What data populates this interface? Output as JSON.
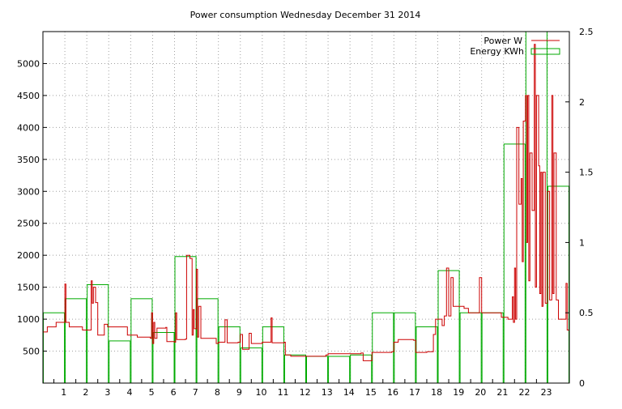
{
  "chart_data": {
    "type": "line",
    "title": "Power consumption Wednesday December 31 2014",
    "x_ticks": [
      "1",
      "2",
      "3",
      "4",
      "5",
      "6",
      "7",
      "8",
      "9",
      "10",
      "11",
      "12",
      "13",
      "14",
      "15",
      "16",
      "17",
      "18",
      "19",
      "20",
      "21",
      "22",
      "23"
    ],
    "xlim": [
      0,
      24
    ],
    "y_left": {
      "ticks": [
        "500",
        "1000",
        "1500",
        "2000",
        "2500",
        "3000",
        "3500",
        "4000",
        "4500",
        "5000"
      ],
      "ylim": [
        0,
        5500
      ]
    },
    "y_right": {
      "ticks": [
        "0",
        "0.5",
        "1",
        "1.5",
        "2",
        "2.5"
      ],
      "ylim": [
        0,
        2.5
      ]
    },
    "grid": true,
    "legend_position": "top-right",
    "series": [
      {
        "name": "Power W",
        "axis": "left",
        "color": "#cc0000",
        "style": "step-line",
        "points": [
          [
            0.0,
            800
          ],
          [
            0.2,
            880
          ],
          [
            0.6,
            950
          ],
          [
            1.0,
            1550
          ],
          [
            1.05,
            950
          ],
          [
            1.2,
            880
          ],
          [
            1.8,
            830
          ],
          [
            2.2,
            1600
          ],
          [
            2.25,
            1250
          ],
          [
            2.3,
            1500
          ],
          [
            2.4,
            1260
          ],
          [
            2.5,
            750
          ],
          [
            2.8,
            920
          ],
          [
            2.95,
            880
          ],
          [
            3.8,
            880
          ],
          [
            3.85,
            750
          ],
          [
            4.3,
            720
          ],
          [
            4.9,
            700
          ],
          [
            4.95,
            1100
          ],
          [
            5.0,
            620
          ],
          [
            5.05,
            950
          ],
          [
            5.1,
            700
          ],
          [
            5.2,
            860
          ],
          [
            5.6,
            870
          ],
          [
            5.65,
            650
          ],
          [
            6.0,
            640
          ],
          [
            6.05,
            1100
          ],
          [
            6.1,
            680
          ],
          [
            6.5,
            690
          ],
          [
            6.55,
            2000
          ],
          [
            6.7,
            1950
          ],
          [
            6.8,
            750
          ],
          [
            6.85,
            1150
          ],
          [
            6.9,
            850
          ],
          [
            7.0,
            1780
          ],
          [
            7.05,
            720
          ],
          [
            7.1,
            1200
          ],
          [
            7.2,
            700
          ],
          [
            7.9,
            620
          ],
          [
            8.0,
            640
          ],
          [
            8.3,
            990
          ],
          [
            8.4,
            630
          ],
          [
            8.9,
            640
          ],
          [
            9.0,
            760
          ],
          [
            9.1,
            530
          ],
          [
            9.4,
            780
          ],
          [
            9.5,
            620
          ],
          [
            10.0,
            640
          ],
          [
            10.4,
            1020
          ],
          [
            10.45,
            630
          ],
          [
            11.0,
            640
          ],
          [
            11.05,
            440
          ],
          [
            11.3,
            420
          ],
          [
            12.4,
            420
          ],
          [
            12.9,
            440
          ],
          [
            13.0,
            460
          ],
          [
            14.5,
            470
          ],
          [
            14.6,
            350
          ],
          [
            15.0,
            480
          ],
          [
            15.9,
            490
          ],
          [
            16.0,
            640
          ],
          [
            16.2,
            680
          ],
          [
            16.9,
            670
          ],
          [
            17.0,
            480
          ],
          [
            17.5,
            490
          ],
          [
            17.8,
            760
          ],
          [
            17.9,
            1000
          ],
          [
            18.2,
            900
          ],
          [
            18.3,
            1050
          ],
          [
            18.4,
            1800
          ],
          [
            18.5,
            1050
          ],
          [
            18.6,
            1650
          ],
          [
            18.7,
            1200
          ],
          [
            19.2,
            1170
          ],
          [
            19.4,
            1100
          ],
          [
            19.9,
            1650
          ],
          [
            20.0,
            1100
          ],
          [
            20.6,
            1100
          ],
          [
            20.9,
            1030
          ],
          [
            21.2,
            1000
          ],
          [
            21.4,
            1350
          ],
          [
            21.45,
            950
          ],
          [
            21.5,
            1800
          ],
          [
            21.55,
            1000
          ],
          [
            21.6,
            4000
          ],
          [
            21.7,
            2800
          ],
          [
            21.8,
            3200
          ],
          [
            21.85,
            1900
          ],
          [
            21.9,
            4100
          ],
          [
            22.0,
            4500
          ],
          [
            22.05,
            2200
          ],
          [
            22.1,
            4500
          ],
          [
            22.15,
            1600
          ],
          [
            22.2,
            3600
          ],
          [
            22.3,
            2700
          ],
          [
            22.4,
            5300
          ],
          [
            22.45,
            1500
          ],
          [
            22.5,
            4500
          ],
          [
            22.6,
            3400
          ],
          [
            22.65,
            1400
          ],
          [
            22.7,
            3300
          ],
          [
            22.75,
            1200
          ],
          [
            22.8,
            3300
          ],
          [
            22.9,
            1250
          ],
          [
            23.0,
            3000
          ],
          [
            23.1,
            1300
          ],
          [
            23.2,
            4500
          ],
          [
            23.25,
            1400
          ],
          [
            23.3,
            3600
          ],
          [
            23.4,
            1300
          ],
          [
            23.5,
            1000
          ],
          [
            23.8,
            1000
          ],
          [
            23.85,
            1560
          ],
          [
            23.9,
            830
          ],
          [
            24.0,
            1250
          ]
        ]
      },
      {
        "name": "Energy KWh",
        "axis": "right",
        "color": "#00aa00",
        "style": "histogram",
        "bars": [
          {
            "hour": 0,
            "value": 0.5
          },
          {
            "hour": 1,
            "value": 0.6
          },
          {
            "hour": 2,
            "value": 0.7
          },
          {
            "hour": 3,
            "value": 0.3
          },
          {
            "hour": 4,
            "value": 0.6
          },
          {
            "hour": 5,
            "value": 0.36
          },
          {
            "hour": 6,
            "value": 0.9
          },
          {
            "hour": 7,
            "value": 0.6
          },
          {
            "hour": 8,
            "value": 0.4
          },
          {
            "hour": 9,
            "value": 0.25
          },
          {
            "hour": 10,
            "value": 0.4
          },
          {
            "hour": 11,
            "value": 0.2
          },
          {
            "hour": 12,
            "value": 0.19
          },
          {
            "hour": 13,
            "value": 0.19
          },
          {
            "hour": 14,
            "value": 0.2
          },
          {
            "hour": 15,
            "value": 0.5
          },
          {
            "hour": 16,
            "value": 0.5
          },
          {
            "hour": 17,
            "value": 0.4
          },
          {
            "hour": 18,
            "value": 0.8
          },
          {
            "hour": 19,
            "value": 0.5
          },
          {
            "hour": 20,
            "value": 0.5
          },
          {
            "hour": 21,
            "value": 1.7
          },
          {
            "hour": 22,
            "value": 2.5
          },
          {
            "hour": 23,
            "value": 1.4
          }
        ]
      }
    ]
  }
}
